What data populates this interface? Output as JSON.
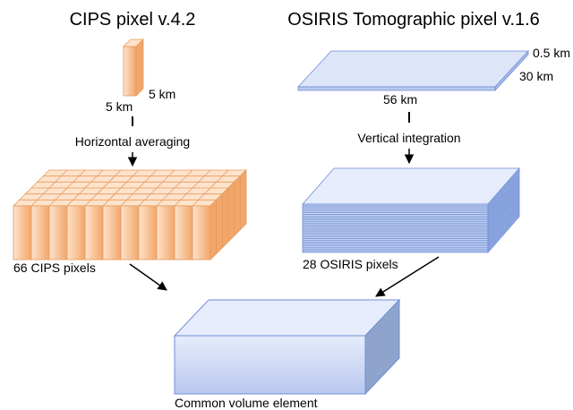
{
  "cips": {
    "title": "CIPS pixel v.4.2",
    "dims": [
      "5 km",
      "5 km"
    ],
    "step": "Horizontal averaging",
    "result": "66 CIPS pixels"
  },
  "osiris": {
    "title": "OSIRIS Tomographic pixel v.1.6",
    "dims": [
      "0.5 km",
      "30 km",
      "56 km"
    ],
    "step": "Vertical integration",
    "result": "28 OSIRIS pixels"
  },
  "common": {
    "label": "Common volume element"
  }
}
